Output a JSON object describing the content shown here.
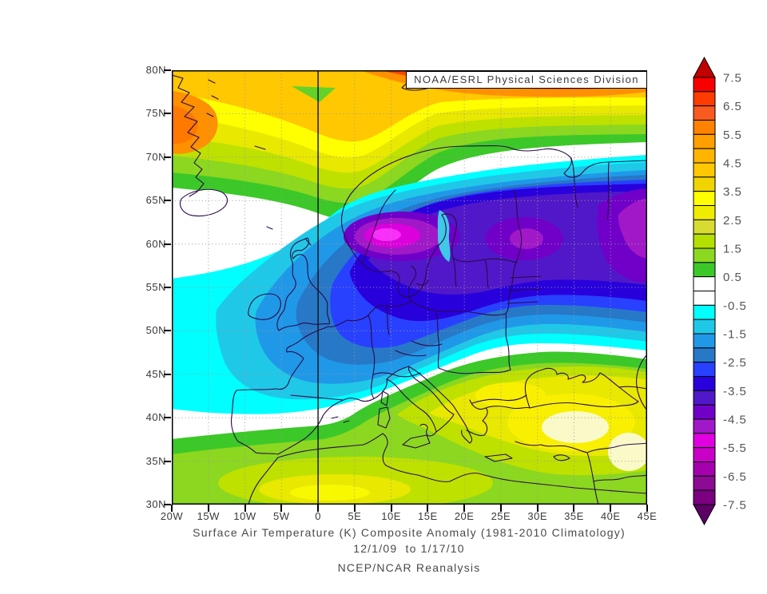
{
  "header": {
    "title_box": "NOAA/ESRL Physical Sciences Division"
  },
  "map": {
    "lat_labels": [
      "80N",
      "75N",
      "70N",
      "65N",
      "60N",
      "55N",
      "50N",
      "45N",
      "40N",
      "35N",
      "30N"
    ],
    "lon_labels": [
      "20W",
      "15W",
      "10W",
      "5W",
      "0",
      "5E",
      "10E",
      "15E",
      "20E",
      "25E",
      "30E",
      "35E",
      "40E",
      "45E"
    ]
  },
  "colorbar": {
    "labels": [
      "7.5",
      "6.5",
      "5.5",
      "4.5",
      "3.5",
      "2.5",
      "1.5",
      "0.5",
      "-0.5",
      "-1.5",
      "-2.5",
      "-3.5",
      "-4.5",
      "-5.5",
      "-6.5",
      "-7.5"
    ],
    "cells": [
      "#F80000",
      "#FF3C00",
      "#F85A20",
      "#FF8200",
      "#FFA000",
      "#FFB400",
      "#FFC800",
      "#F0D400",
      "#FFFF00",
      "#F0EC00",
      "#D8DC30",
      "#B4E000",
      "#8CD720",
      "#3CC828",
      "#FFFFFF",
      "#FFFFFF",
      "#00FFFF",
      "#20C8E8",
      "#2098E8",
      "#2878C8",
      "#2840FF",
      "#2800DC",
      "#5018C8",
      "#7000C8",
      "#A018C8",
      "#E000E0",
      "#C800C8",
      "#A400AC",
      "#8C0A94",
      "#7A0080"
    ],
    "arrow_top_color": "#C00000",
    "arrow_bottom_color": "#5C0066"
  },
  "captions": {
    "line1": "Surface Air Temperature (K) Composite Anomaly (1981-2010 Climatology)",
    "line2": "12/1/09  to 1/17/10",
    "line3": "NCEP/NCAR Reanalysis"
  },
  "chart_data": {
    "type": "heatmap",
    "title": "Surface Air Temperature (K) Composite Anomaly (1981-2010 Climatology)",
    "period": "12/1/09 to 1/17/10",
    "source": "NCEP/NCAR Reanalysis",
    "units": "K",
    "colorbar_range": [
      -7.5,
      7.5
    ],
    "colorbar_step": 0.5,
    "lon_range_deg": [
      -20,
      45
    ],
    "lat_range_deg": [
      30,
      80
    ],
    "notable_features": {
      "cold_core_south_norway_K": -5.5,
      "cold_core_west_russia_K": -4.5,
      "warm_band_arctic_top_K": 7.5,
      "warm_core_turkey_K": 3.5,
      "warm_core_north_africa_K": 3.0
    }
  }
}
